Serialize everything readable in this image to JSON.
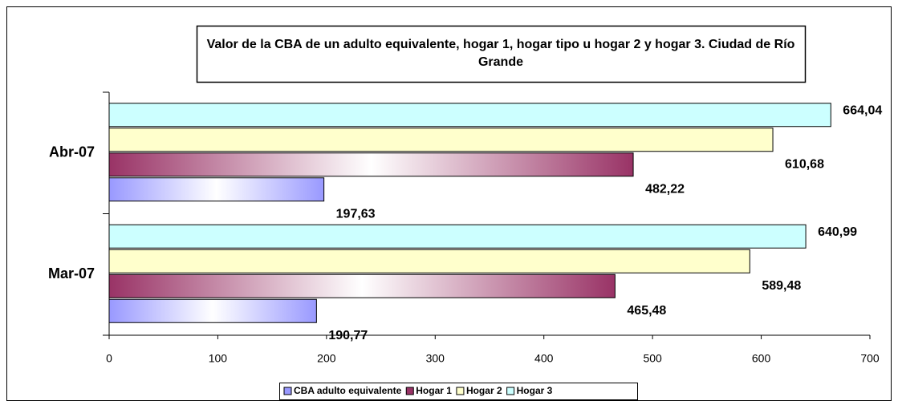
{
  "chart_data": {
    "type": "hbar",
    "title": "Valor de la CBA de un adulto equivalente, hogar 1, hogar tipo u hogar 2 y hogar 3. Ciudad de Río Grande",
    "categories": [
      "Mar-07",
      "Abr-07"
    ],
    "series": [
      {
        "name": "CBA adulto equivalente",
        "color": "#9999ff",
        "values": [
          190.77,
          197.63
        ],
        "value_labels": [
          "190,77",
          "197,63"
        ]
      },
      {
        "name": "Hogar 1",
        "color": "#993366",
        "values": [
          465.48,
          482.22
        ],
        "value_labels": [
          "465,48",
          "482,22"
        ]
      },
      {
        "name": "Hogar 2",
        "color": "#ffffcc",
        "values": [
          589.48,
          610.68
        ],
        "value_labels": [
          "589,48",
          "610,68"
        ]
      },
      {
        "name": "Hogar 3",
        "color": "#ccffff",
        "values": [
          640.99,
          664.04
        ],
        "value_labels": [
          "640,99",
          "664,04"
        ]
      }
    ],
    "xlim": [
      0,
      700
    ],
    "xticks": [
      0,
      100,
      200,
      300,
      400,
      500,
      600,
      700
    ],
    "grid": false,
    "legend": "bottom"
  }
}
